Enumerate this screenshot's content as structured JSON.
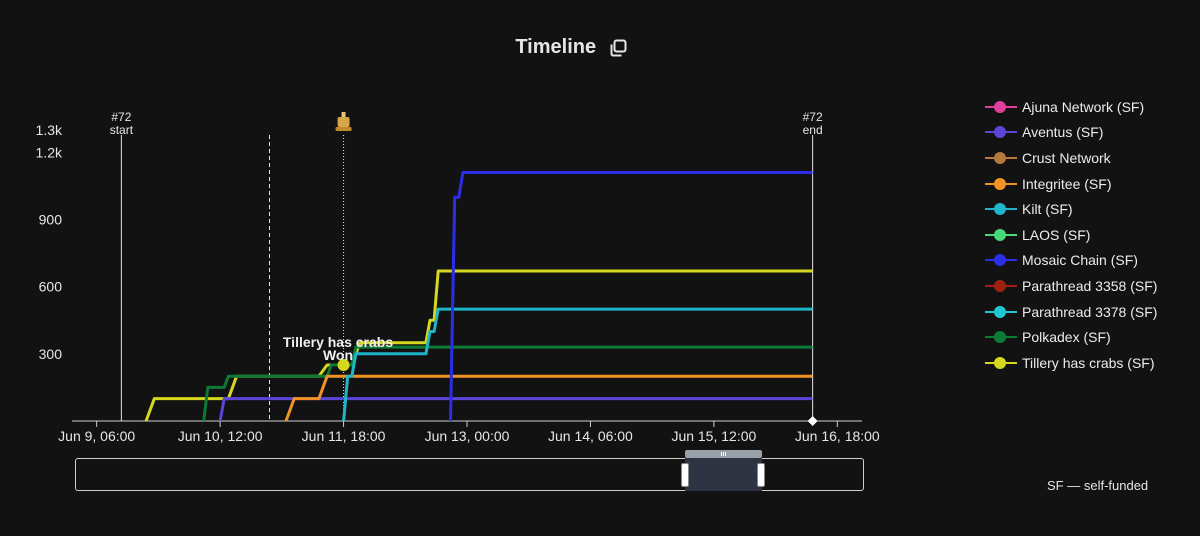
{
  "title": "Timeline",
  "icons": {
    "copy": "copy-icon",
    "auction_marker": "trophy-icon"
  },
  "footnote": "SF — self-funded",
  "legend": [
    {
      "name": "Ajuna Network (SF)",
      "color": "#e0409a"
    },
    {
      "name": "Aventus (SF)",
      "color": "#5b45d9"
    },
    {
      "name": "Crust Network",
      "color": "#b5793a"
    },
    {
      "name": "Integritee (SF)",
      "color": "#f39224"
    },
    {
      "name": "Kilt (SF)",
      "color": "#1fb5c9"
    },
    {
      "name": "LAOS (SF)",
      "color": "#4ad97a"
    },
    {
      "name": "Mosaic Chain (SF)",
      "color": "#2b2de8"
    },
    {
      "name": "Parathread 3358 (SF)",
      "color": "#a0200f"
    },
    {
      "name": "Parathread 3378 (SF)",
      "color": "#1ec8cf"
    },
    {
      "name": "Polkadex (SF)",
      "color": "#0d7a35"
    },
    {
      "name": "Tillery has crabs (SF)",
      "color": "#d5d81e"
    }
  ],
  "chart_data": {
    "type": "line",
    "step": true,
    "xlabel": "",
    "ylabel": "",
    "x_ticks": [
      "Jun 9, 06:00",
      "Jun 10, 12:00",
      "Jun 11, 18:00",
      "Jun 13, 00:00",
      "Jun 14, 06:00",
      "Jun 15, 12:00",
      "Jun 16, 18:00"
    ],
    "y_ticks": [
      300,
      600,
      900,
      1200,
      1300
    ],
    "y_tick_labels": [
      "300",
      "600",
      "900",
      "1.2k",
      "1.3k"
    ],
    "xlim": [
      "Jun 9, 00:00",
      "Jun 17, 00:00"
    ],
    "ylim": [
      0,
      1300
    ],
    "markers": [
      {
        "label": "#72",
        "sublabel": "start",
        "x": "Jun 9, 12:00",
        "style": "solid"
      },
      {
        "label": "",
        "sublabel": "",
        "x": "Jun 11, 00:00",
        "style": "dashed"
      },
      {
        "label": "",
        "sublabel": "",
        "x": "Jun 11, 18:00",
        "style": "dotted",
        "icon": "trophy-icon"
      },
      {
        "label": "#72",
        "sublabel": "end",
        "x": "Jun 16, 12:00",
        "style": "solid"
      }
    ],
    "winner": {
      "line1": "Tillery has crabs",
      "line2": "Won",
      "x": "Jun 11, 18:00",
      "y": 250,
      "series": "Tillery has crabs (SF)"
    },
    "series": [
      {
        "name": "Tillery has crabs (SF)",
        "color": "#d5d81e",
        "points": [
          [
            "Jun 9, 18:00",
            0
          ],
          [
            "Jun 9, 20:00",
            100
          ],
          [
            "Jun 10, 14:00",
            100
          ],
          [
            "Jun 10, 16:00",
            200
          ],
          [
            "Jun 11, 12:00",
            200
          ],
          [
            "Jun 11, 14:00",
            250
          ],
          [
            "Jun 11, 20:00",
            250
          ],
          [
            "Jun 11, 22:00",
            350
          ],
          [
            "Jun 12, 14:00",
            350
          ],
          [
            "Jun 12, 15:00",
            450
          ],
          [
            "Jun 12, 16:00",
            450
          ],
          [
            "Jun 12, 17:00",
            670
          ],
          [
            "Jun 16, 12:00",
            670
          ]
        ]
      },
      {
        "name": "Polkadex (SF)",
        "color": "#0d7a35",
        "points": [
          [
            "Jun 10, 08:00",
            0
          ],
          [
            "Jun 10, 09:00",
            150
          ],
          [
            "Jun 10, 13:00",
            150
          ],
          [
            "Jun 10, 14:00",
            200
          ],
          [
            "Jun 11, 14:00",
            200
          ],
          [
            "Jun 11, 15:00",
            250
          ],
          [
            "Jun 11, 20:00",
            250
          ],
          [
            "Jun 11, 21:00",
            330
          ],
          [
            "Jun 16, 12:00",
            330
          ]
        ]
      },
      {
        "name": "Aventus (SF)",
        "color": "#5b45d9",
        "points": [
          [
            "Jun 10, 12:00",
            0
          ],
          [
            "Jun 10, 13:00",
            100
          ],
          [
            "Jun 16, 12:00",
            100
          ]
        ]
      },
      {
        "name": "Integritee (SF)",
        "color": "#f39224",
        "points": [
          [
            "Jun 11, 04:00",
            0
          ],
          [
            "Jun 11, 06:00",
            100
          ],
          [
            "Jun 11, 12:00",
            100
          ],
          [
            "Jun 11, 14:00",
            200
          ],
          [
            "Jun 16, 12:00",
            200
          ]
        ]
      },
      {
        "name": "Kilt (SF)",
        "color": "#1fb5c9",
        "points": [
          [
            "Jun 11, 18:00",
            0
          ],
          [
            "Jun 11, 19:00",
            200
          ],
          [
            "Jun 11, 20:00",
            200
          ],
          [
            "Jun 11, 21:00",
            300
          ],
          [
            "Jun 12, 14:00",
            300
          ],
          [
            "Jun 12, 15:00",
            400
          ],
          [
            "Jun 12, 16:00",
            400
          ],
          [
            "Jun 12, 17:00",
            500
          ],
          [
            "Jun 16, 12:00",
            500
          ]
        ]
      },
      {
        "name": "Mosaic Chain (SF)",
        "color": "#2b2de8",
        "points": [
          [
            "Jun 12, 20:00",
            0
          ],
          [
            "Jun 12, 21:00",
            1000
          ],
          [
            "Jun 12, 22:00",
            1000
          ],
          [
            "Jun 12, 23:00",
            1110
          ],
          [
            "Jun 16, 12:00",
            1110
          ]
        ]
      }
    ],
    "navigator": {
      "window_start": "Jun 15, 08:00",
      "window_end": "Jun 16, 12:00"
    }
  }
}
